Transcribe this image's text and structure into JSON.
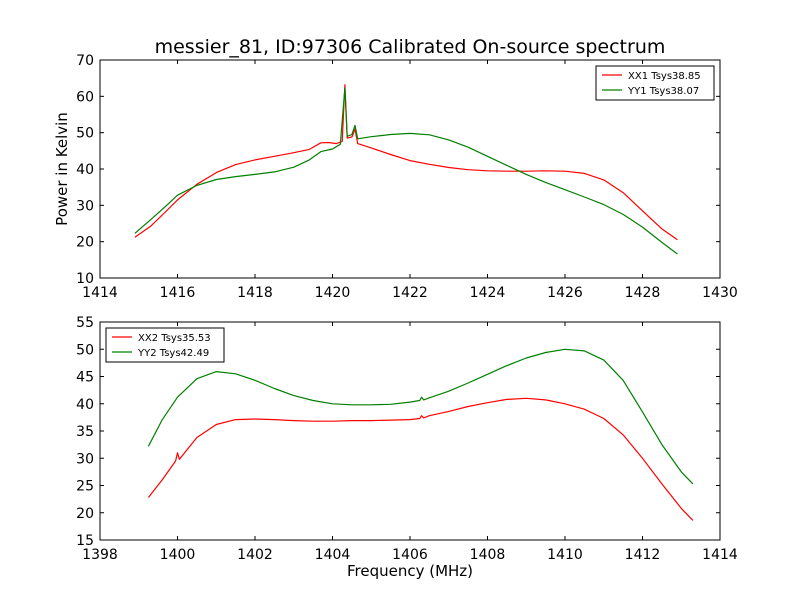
{
  "title": "messier_81, ID:97306 Calibrated On-source spectrum",
  "chart_data": [
    {
      "type": "line",
      "title": "messier_81, ID:97306 Calibrated On-source spectrum",
      "xlabel": "",
      "ylabel": "Power in Kelvin",
      "xlim": [
        1414,
        1430
      ],
      "ylim": [
        10,
        70
      ],
      "xticks": [
        "1414",
        "1416",
        "1418",
        "1420",
        "1422",
        "1424",
        "1426",
        "1428",
        "1430"
      ],
      "yticks": [
        "10",
        "20",
        "30",
        "40",
        "50",
        "60",
        "70"
      ],
      "legend_position": "top-right",
      "series": [
        {
          "name": "XX1 Tsys38.85",
          "color": "#ff0000",
          "points": [
            [
              1414.9,
              21.2
            ],
            [
              1415.3,
              24.2
            ],
            [
              1415.7,
              28.3
            ],
            [
              1416.0,
              31.5
            ],
            [
              1416.5,
              35.8
            ],
            [
              1417.0,
              39.0
            ],
            [
              1417.5,
              41.2
            ],
            [
              1418.0,
              42.5
            ],
            [
              1418.5,
              43.5
            ],
            [
              1419.0,
              44.5
            ],
            [
              1419.4,
              45.4
            ],
            [
              1419.7,
              47.2
            ],
            [
              1419.9,
              47.3
            ],
            [
              1420.1,
              47.0
            ],
            [
              1420.25,
              47.6
            ],
            [
              1420.32,
              63.2
            ],
            [
              1420.38,
              48.5
            ],
            [
              1420.5,
              48.8
            ],
            [
              1420.58,
              51.0
            ],
            [
              1420.65,
              47.0
            ],
            [
              1421.0,
              45.8
            ],
            [
              1421.5,
              44.0
            ],
            [
              1422.0,
              42.3
            ],
            [
              1422.5,
              41.3
            ],
            [
              1423.0,
              40.4
            ],
            [
              1423.5,
              39.8
            ],
            [
              1424.0,
              39.5
            ],
            [
              1424.5,
              39.4
            ],
            [
              1425.0,
              39.4
            ],
            [
              1425.5,
              39.5
            ],
            [
              1426.0,
              39.4
            ],
            [
              1426.5,
              38.8
            ],
            [
              1427.0,
              37.0
            ],
            [
              1427.5,
              33.5
            ],
            [
              1428.0,
              28.5
            ],
            [
              1428.5,
              23.5
            ],
            [
              1428.9,
              20.5
            ]
          ]
        },
        {
          "name": "YY1 Tsys38.07",
          "color": "#008000",
          "points": [
            [
              1414.9,
              22.3
            ],
            [
              1415.3,
              26.0
            ],
            [
              1415.7,
              29.8
            ],
            [
              1416.0,
              32.8
            ],
            [
              1416.5,
              35.5
            ],
            [
              1417.0,
              37.1
            ],
            [
              1417.5,
              37.9
            ],
            [
              1418.0,
              38.5
            ],
            [
              1418.5,
              39.2
            ],
            [
              1419.0,
              40.5
            ],
            [
              1419.4,
              42.5
            ],
            [
              1419.7,
              44.8
            ],
            [
              1420.0,
              45.5
            ],
            [
              1420.2,
              46.8
            ],
            [
              1420.32,
              62.3
            ],
            [
              1420.38,
              49.0
            ],
            [
              1420.5,
              49.5
            ],
            [
              1420.58,
              52.0
            ],
            [
              1420.65,
              48.3
            ],
            [
              1421.0,
              48.9
            ],
            [
              1421.5,
              49.5
            ],
            [
              1422.0,
              49.8
            ],
            [
              1422.5,
              49.4
            ],
            [
              1423.0,
              48.0
            ],
            [
              1423.5,
              46.0
            ],
            [
              1424.0,
              43.5
            ],
            [
              1424.5,
              41.0
            ],
            [
              1425.0,
              38.5
            ],
            [
              1425.5,
              36.3
            ],
            [
              1426.0,
              34.3
            ],
            [
              1426.5,
              32.3
            ],
            [
              1427.0,
              30.2
            ],
            [
              1427.5,
              27.5
            ],
            [
              1428.0,
              24.0
            ],
            [
              1428.5,
              19.8
            ],
            [
              1428.9,
              16.6
            ]
          ]
        }
      ]
    },
    {
      "type": "line",
      "title": "",
      "xlabel": "Frequency (MHz)",
      "ylabel": "",
      "xlim": [
        1398,
        1414
      ],
      "ylim": [
        15,
        55
      ],
      "xticks": [
        "1398",
        "1400",
        "1402",
        "1404",
        "1406",
        "1408",
        "1410",
        "1412",
        "1414"
      ],
      "yticks": [
        "15",
        "20",
        "25",
        "30",
        "35",
        "40",
        "45",
        "50",
        "55"
      ],
      "legend_position": "top-left",
      "series": [
        {
          "name": "XX2 Tsys35.53",
          "color": "#ff0000",
          "points": [
            [
              1399.25,
              22.8
            ],
            [
              1399.6,
              26.0
            ],
            [
              1399.95,
              29.5
            ],
            [
              1400.0,
              31.0
            ],
            [
              1400.05,
              29.8
            ],
            [
              1400.5,
              33.8
            ],
            [
              1401.0,
              36.2
            ],
            [
              1401.5,
              37.1
            ],
            [
              1402.0,
              37.2
            ],
            [
              1402.5,
              37.1
            ],
            [
              1403.0,
              36.9
            ],
            [
              1403.5,
              36.8
            ],
            [
              1404.0,
              36.8
            ],
            [
              1404.5,
              36.9
            ],
            [
              1405.0,
              36.9
            ],
            [
              1405.5,
              37.0
            ],
            [
              1406.0,
              37.1
            ],
            [
              1406.25,
              37.3
            ],
            [
              1406.3,
              37.8
            ],
            [
              1406.35,
              37.4
            ],
            [
              1406.5,
              37.8
            ],
            [
              1407.0,
              38.6
            ],
            [
              1407.5,
              39.5
            ],
            [
              1408.0,
              40.2
            ],
            [
              1408.5,
              40.8
            ],
            [
              1409.0,
              41.0
            ],
            [
              1409.5,
              40.7
            ],
            [
              1410.0,
              40.0
            ],
            [
              1410.5,
              39.0
            ],
            [
              1411.0,
              37.3
            ],
            [
              1411.5,
              34.3
            ],
            [
              1412.0,
              30.0
            ],
            [
              1412.5,
              25.3
            ],
            [
              1413.0,
              20.8
            ],
            [
              1413.3,
              18.6
            ]
          ]
        },
        {
          "name": "YY2 Tsys42.49",
          "color": "#008000",
          "points": [
            [
              1399.25,
              32.2
            ],
            [
              1399.6,
              37.0
            ],
            [
              1400.0,
              41.2
            ],
            [
              1400.5,
              44.6
            ],
            [
              1401.0,
              45.9
            ],
            [
              1401.5,
              45.5
            ],
            [
              1402.0,
              44.3
            ],
            [
              1402.5,
              42.8
            ],
            [
              1403.0,
              41.5
            ],
            [
              1403.5,
              40.6
            ],
            [
              1404.0,
              40.0
            ],
            [
              1404.5,
              39.8
            ],
            [
              1405.0,
              39.8
            ],
            [
              1405.5,
              39.9
            ],
            [
              1406.0,
              40.3
            ],
            [
              1406.25,
              40.6
            ],
            [
              1406.3,
              41.2
            ],
            [
              1406.35,
              40.7
            ],
            [
              1406.5,
              41.1
            ],
            [
              1407.0,
              42.3
            ],
            [
              1407.5,
              43.8
            ],
            [
              1408.0,
              45.4
            ],
            [
              1408.5,
              47.0
            ],
            [
              1409.0,
              48.4
            ],
            [
              1409.5,
              49.4
            ],
            [
              1410.0,
              50.0
            ],
            [
              1410.5,
              49.7
            ],
            [
              1411.0,
              48.0
            ],
            [
              1411.5,
              44.3
            ],
            [
              1412.0,
              38.5
            ],
            [
              1412.5,
              32.5
            ],
            [
              1413.0,
              27.5
            ],
            [
              1413.3,
              25.3
            ]
          ]
        }
      ]
    }
  ]
}
